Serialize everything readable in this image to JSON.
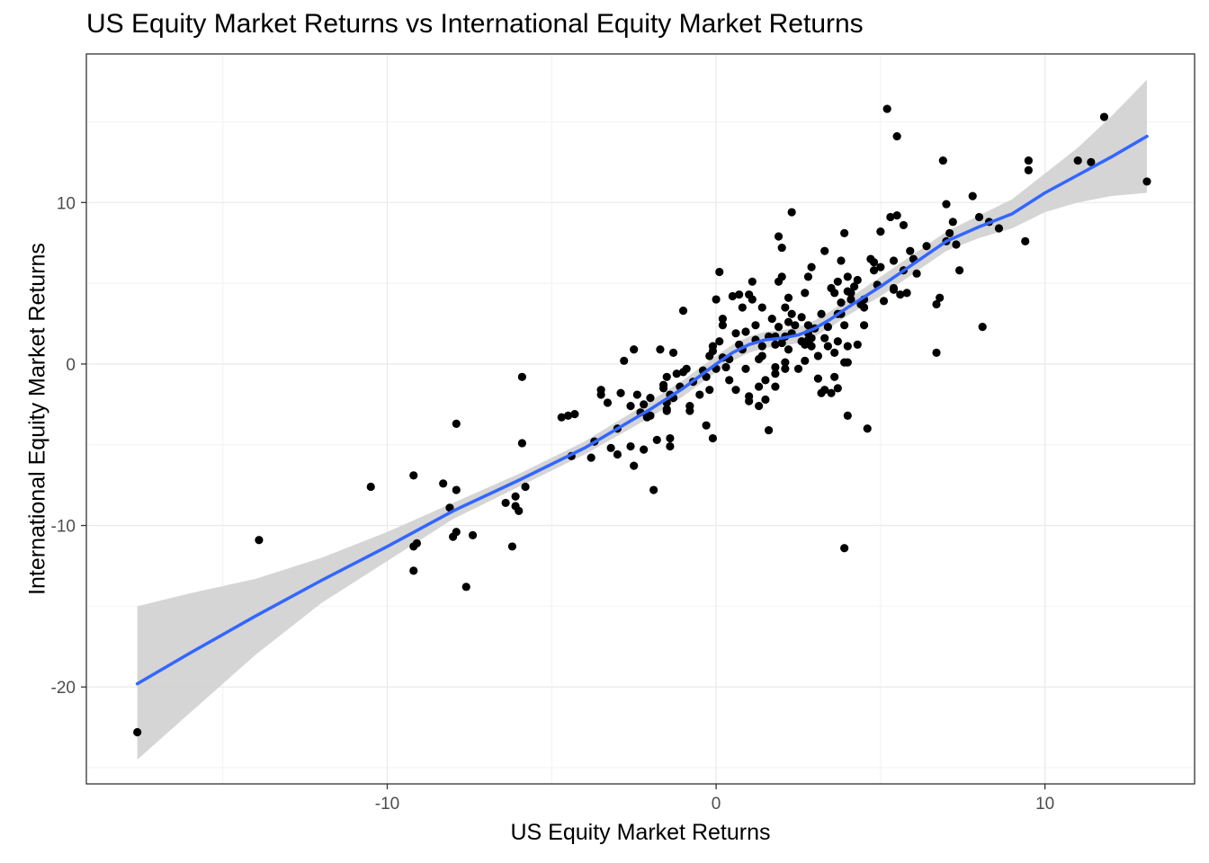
{
  "chart_data": {
    "type": "scatter",
    "title": "US Equity Market Returns vs International Equity Market Returns",
    "xlabel": "US Equity Market Returns",
    "ylabel": "International Equity Market Returns",
    "xlim": [
      -19.15,
      14.55
    ],
    "ylim": [
      -26.0,
      19.2
    ],
    "x_ticks": [
      -10,
      0,
      10
    ],
    "y_ticks": [
      -20,
      -10,
      0,
      10
    ],
    "grid": true,
    "theme": "black-and-white",
    "point_color": "#000000",
    "smooth_color": "#3366FF",
    "ribbon_color": "#D3D3D3",
    "points": [
      [
        -17.6,
        -22.8
      ],
      [
        -13.9,
        -10.9
      ],
      [
        -10.5,
        -7.6
      ],
      [
        -9.2,
        -6.9
      ],
      [
        -9.2,
        -12.8
      ],
      [
        -9.2,
        -11.3
      ],
      [
        -9.1,
        -11.1
      ],
      [
        -8.3,
        -7.4
      ],
      [
        -8.1,
        -8.9
      ],
      [
        -8.0,
        -10.7
      ],
      [
        -7.9,
        -3.7
      ],
      [
        -7.9,
        -10.4
      ],
      [
        -7.6,
        -13.8
      ],
      [
        -7.4,
        -10.6
      ],
      [
        -7.9,
        -7.8
      ],
      [
        -6.4,
        -8.6
      ],
      [
        -6.2,
        -11.3
      ],
      [
        -6.1,
        -8.2
      ],
      [
        -6.1,
        -8.8
      ],
      [
        -6.0,
        -9.1
      ],
      [
        -5.9,
        -4.9
      ],
      [
        -5.8,
        -7.6
      ],
      [
        -5.9,
        -0.8
      ],
      [
        -4.7,
        -3.3
      ],
      [
        -4.5,
        -3.2
      ],
      [
        -4.4,
        -5.7
      ],
      [
        -4.3,
        -3.1
      ],
      [
        -3.8,
        -5.8
      ],
      [
        -3.7,
        -4.8
      ],
      [
        -3.5,
        -1.6
      ],
      [
        -3.5,
        -1.9
      ],
      [
        -3.3,
        -2.4
      ],
      [
        -3.2,
        -5.2
      ],
      [
        -3.0,
        -4.0
      ],
      [
        -3.0,
        -5.6
      ],
      [
        -2.9,
        -1.8
      ],
      [
        -2.8,
        0.2
      ],
      [
        -2.6,
        -5.1
      ],
      [
        -2.6,
        -2.6
      ],
      [
        -2.5,
        -6.3
      ],
      [
        -2.5,
        0.9
      ],
      [
        -2.4,
        -1.9
      ],
      [
        -2.3,
        -3.0
      ],
      [
        -2.2,
        -2.5
      ],
      [
        -2.2,
        -5.3
      ],
      [
        -2.1,
        -3.3
      ],
      [
        -2.0,
        -3.2
      ],
      [
        -2.0,
        -2.1
      ],
      [
        -1.9,
        -7.8
      ],
      [
        -1.8,
        -4.7
      ],
      [
        -1.7,
        0.9
      ],
      [
        -1.6,
        -1.5
      ],
      [
        -1.6,
        -1.3
      ],
      [
        -1.5,
        -2.8
      ],
      [
        -1.5,
        -2.4
      ],
      [
        -1.5,
        -2.9
      ],
      [
        -1.5,
        -0.8
      ],
      [
        -1.4,
        -1.9
      ],
      [
        -1.4,
        -4.6
      ],
      [
        -1.4,
        -5.1
      ],
      [
        -1.3,
        -2.1
      ],
      [
        -1.3,
        0.7
      ],
      [
        -1.2,
        -0.6
      ],
      [
        -1.1,
        -1.4
      ],
      [
        -1.0,
        -0.5
      ],
      [
        -1.0,
        3.3
      ],
      [
        -0.9,
        -0.3
      ],
      [
        -0.8,
        -2.9
      ],
      [
        -0.8,
        -2.6
      ],
      [
        -0.7,
        -1.1
      ],
      [
        -0.5,
        -1.9
      ],
      [
        -0.4,
        -0.4
      ],
      [
        -0.3,
        -0.8
      ],
      [
        -0.3,
        -3.8
      ],
      [
        -0.2,
        0.5
      ],
      [
        -0.2,
        -1.6
      ],
      [
        -0.1,
        1.1
      ],
      [
        -0.1,
        -4.6
      ],
      [
        -0.1,
        0.8
      ],
      [
        0.0,
        -0.3
      ],
      [
        0.0,
        4.0
      ],
      [
        0.1,
        1.4
      ],
      [
        0.1,
        5.7
      ],
      [
        0.2,
        2.4
      ],
      [
        0.2,
        2.8
      ],
      [
        0.2,
        0.4
      ],
      [
        0.3,
        -0.2
      ],
      [
        0.4,
        0.3
      ],
      [
        0.4,
        -1.0
      ],
      [
        0.5,
        4.2
      ],
      [
        0.6,
        1.9
      ],
      [
        0.6,
        -1.6
      ],
      [
        0.7,
        1.2
      ],
      [
        0.7,
        4.3
      ],
      [
        0.8,
        3.5
      ],
      [
        0.8,
        0.9
      ],
      [
        0.9,
        2.0
      ],
      [
        0.9,
        -0.3
      ],
      [
        1.0,
        4.3
      ],
      [
        1.0,
        -2.0
      ],
      [
        1.0,
        -2.3
      ],
      [
        1.1,
        5.1
      ],
      [
        1.1,
        4.0
      ],
      [
        1.2,
        2.4
      ],
      [
        1.2,
        1.5
      ],
      [
        1.3,
        0.3
      ],
      [
        1.3,
        -1.4
      ],
      [
        1.3,
        -2.6
      ],
      [
        1.4,
        3.5
      ],
      [
        1.4,
        1.1
      ],
      [
        1.4,
        0.5
      ],
      [
        1.5,
        -1.0
      ],
      [
        1.5,
        -2.2
      ],
      [
        1.6,
        1.7
      ],
      [
        1.6,
        -4.1
      ],
      [
        1.7,
        2.8
      ],
      [
        1.8,
        1.7
      ],
      [
        1.8,
        1.2
      ],
      [
        1.8,
        -0.6
      ],
      [
        1.8,
        -1.4
      ],
      [
        1.8,
        -0.2
      ],
      [
        1.9,
        7.9
      ],
      [
        1.9,
        5.1
      ],
      [
        1.9,
        2.3
      ],
      [
        2.0,
        7.2
      ],
      [
        2.0,
        5.4
      ],
      [
        2.0,
        1.3
      ],
      [
        2.1,
        0.1
      ],
      [
        2.1,
        -0.3
      ],
      [
        2.1,
        1.7
      ],
      [
        2.1,
        3.5
      ],
      [
        2.2,
        4.1
      ],
      [
        2.2,
        2.6
      ],
      [
        2.2,
        0.9
      ],
      [
        2.3,
        1.9
      ],
      [
        2.3,
        9.4
      ],
      [
        2.3,
        3.1
      ],
      [
        2.4,
        2.4
      ],
      [
        2.5,
        -0.3
      ],
      [
        2.6,
        1.4
      ],
      [
        2.6,
        2.9
      ],
      [
        2.7,
        1.2
      ],
      [
        2.7,
        0.2
      ],
      [
        2.7,
        4.4
      ],
      [
        2.8,
        1.9
      ],
      [
        2.8,
        5.4
      ],
      [
        2.8,
        2.4
      ],
      [
        2.8,
        1.5
      ],
      [
        2.9,
        6.0
      ],
      [
        2.9,
        1.6
      ],
      [
        2.9,
        1.1
      ],
      [
        3.0,
        2.2
      ],
      [
        3.1,
        0.5
      ],
      [
        3.1,
        -0.9
      ],
      [
        3.2,
        3.1
      ],
      [
        3.2,
        -1.8
      ],
      [
        3.3,
        1.6
      ],
      [
        3.3,
        -1.6
      ],
      [
        3.3,
        7.0
      ],
      [
        3.4,
        2.3
      ],
      [
        3.4,
        1.1
      ],
      [
        3.5,
        -1.8
      ],
      [
        3.5,
        4.7
      ],
      [
        3.6,
        -0.8
      ],
      [
        3.6,
        4.4
      ],
      [
        3.6,
        0.7
      ],
      [
        3.7,
        3.1
      ],
      [
        3.7,
        1.4
      ],
      [
        3.7,
        -1.5
      ],
      [
        3.7,
        5.1
      ],
      [
        3.8,
        3.8
      ],
      [
        3.8,
        6.4
      ],
      [
        3.8,
        3.1
      ],
      [
        3.9,
        0.1
      ],
      [
        3.9,
        2.4
      ],
      [
        3.9,
        -11.4
      ],
      [
        3.9,
        8.1
      ],
      [
        4.0,
        4.5
      ],
      [
        4.0,
        1.1
      ],
      [
        4.0,
        0.1
      ],
      [
        4.0,
        -3.2
      ],
      [
        4.0,
        5.4
      ],
      [
        4.1,
        4.4
      ],
      [
        4.1,
        4.0
      ],
      [
        4.2,
        4.8
      ],
      [
        4.3,
        5.2
      ],
      [
        4.3,
        1.2
      ],
      [
        4.4,
        3.7
      ],
      [
        4.5,
        3.5
      ],
      [
        4.5,
        4.0
      ],
      [
        4.5,
        2.4
      ],
      [
        4.6,
        -4.0
      ],
      [
        4.7,
        6.5
      ],
      [
        4.8,
        6.3
      ],
      [
        4.8,
        5.8
      ],
      [
        4.9,
        4.9
      ],
      [
        5.0,
        8.2
      ],
      [
        5.0,
        6.0
      ],
      [
        5.1,
        3.9
      ],
      [
        5.2,
        15.8
      ],
      [
        5.3,
        9.1
      ],
      [
        5.4,
        6.4
      ],
      [
        5.4,
        4.7
      ],
      [
        5.4,
        4.6
      ],
      [
        5.5,
        14.1
      ],
      [
        5.5,
        9.2
      ],
      [
        5.6,
        4.3
      ],
      [
        5.7,
        8.6
      ],
      [
        5.7,
        5.8
      ],
      [
        5.8,
        4.4
      ],
      [
        5.9,
        7.0
      ],
      [
        6.0,
        6.5
      ],
      [
        6.1,
        5.6
      ],
      [
        6.4,
        7.3
      ],
      [
        6.7,
        0.7
      ],
      [
        6.7,
        3.7
      ],
      [
        6.8,
        4.1
      ],
      [
        6.9,
        12.6
      ],
      [
        7.0,
        7.6
      ],
      [
        7.0,
        9.9
      ],
      [
        7.1,
        8.1
      ],
      [
        7.2,
        8.8
      ],
      [
        7.3,
        7.4
      ],
      [
        7.4,
        5.8
      ],
      [
        7.8,
        10.4
      ],
      [
        8.0,
        9.1
      ],
      [
        8.1,
        2.3
      ],
      [
        8.3,
        8.8
      ],
      [
        8.6,
        8.4
      ],
      [
        9.4,
        7.6
      ],
      [
        9.5,
        12.0
      ],
      [
        9.5,
        12.6
      ],
      [
        11.0,
        12.6
      ],
      [
        11.4,
        12.5
      ],
      [
        11.8,
        15.3
      ],
      [
        13.1,
        11.3
      ]
    ],
    "smooth": [
      [
        -17.6,
        -19.8
      ],
      [
        -16.0,
        -17.9
      ],
      [
        -14.0,
        -15.6
      ],
      [
        -12.0,
        -13.4
      ],
      [
        -10.0,
        -11.3
      ],
      [
        -8.0,
        -9.1
      ],
      [
        -6.0,
        -7.2
      ],
      [
        -4.0,
        -5.2
      ],
      [
        -2.0,
        -2.8
      ],
      [
        -1.0,
        -1.5
      ],
      [
        0.0,
        0.0
      ],
      [
        0.5,
        0.7
      ],
      [
        1.0,
        1.2
      ],
      [
        1.5,
        1.5
      ],
      [
        2.0,
        1.6
      ],
      [
        2.5,
        1.8
      ],
      [
        3.0,
        2.2
      ],
      [
        3.5,
        2.8
      ],
      [
        4.0,
        3.5
      ],
      [
        5.0,
        4.8
      ],
      [
        6.0,
        6.2
      ],
      [
        7.0,
        7.6
      ],
      [
        8.0,
        8.5
      ],
      [
        9.0,
        9.3
      ],
      [
        10.0,
        10.6
      ],
      [
        11.0,
        11.7
      ],
      [
        12.0,
        12.8
      ],
      [
        13.1,
        14.1
      ]
    ],
    "ribbon_upper": [
      [
        -17.6,
        -15.0
      ],
      [
        -16.0,
        -14.2
      ],
      [
        -14.0,
        -13.3
      ],
      [
        -12.0,
        -12.0
      ],
      [
        -10.0,
        -10.4
      ],
      [
        -8.0,
        -8.6
      ],
      [
        -6.0,
        -6.8
      ],
      [
        -4.0,
        -4.8
      ],
      [
        -2.0,
        -2.3
      ],
      [
        -1.0,
        -1.0
      ],
      [
        0.0,
        0.5
      ],
      [
        0.5,
        1.2
      ],
      [
        1.0,
        1.7
      ],
      [
        1.5,
        2.0
      ],
      [
        2.0,
        2.1
      ],
      [
        2.5,
        2.3
      ],
      [
        3.0,
        2.7
      ],
      [
        3.5,
        3.3
      ],
      [
        4.0,
        4.0
      ],
      [
        5.0,
        5.4
      ],
      [
        6.0,
        6.8
      ],
      [
        7.0,
        8.2
      ],
      [
        8.0,
        9.2
      ],
      [
        9.0,
        10.2
      ],
      [
        10.0,
        11.8
      ],
      [
        11.0,
        13.4
      ],
      [
        12.0,
        15.3
      ],
      [
        13.1,
        17.6
      ]
    ],
    "ribbon_lower": [
      [
        -17.6,
        -24.5
      ],
      [
        -16.0,
        -21.6
      ],
      [
        -14.0,
        -18.0
      ],
      [
        -12.0,
        -14.8
      ],
      [
        -10.0,
        -12.2
      ],
      [
        -8.0,
        -9.6
      ],
      [
        -6.0,
        -7.6
      ],
      [
        -4.0,
        -5.6
      ],
      [
        -2.0,
        -3.3
      ],
      [
        -1.0,
        -2.0
      ],
      [
        0.0,
        -0.5
      ],
      [
        0.5,
        0.2
      ],
      [
        1.0,
        0.7
      ],
      [
        1.5,
        1.0
      ],
      [
        2.0,
        1.1
      ],
      [
        2.5,
        1.3
      ],
      [
        3.0,
        1.7
      ],
      [
        3.5,
        2.3
      ],
      [
        4.0,
        3.0
      ],
      [
        5.0,
        4.2
      ],
      [
        6.0,
        5.6
      ],
      [
        7.0,
        7.0
      ],
      [
        8.0,
        7.8
      ],
      [
        9.0,
        8.4
      ],
      [
        10.0,
        9.4
      ],
      [
        11.0,
        10.0
      ],
      [
        12.0,
        10.4
      ],
      [
        13.1,
        10.6
      ]
    ]
  }
}
